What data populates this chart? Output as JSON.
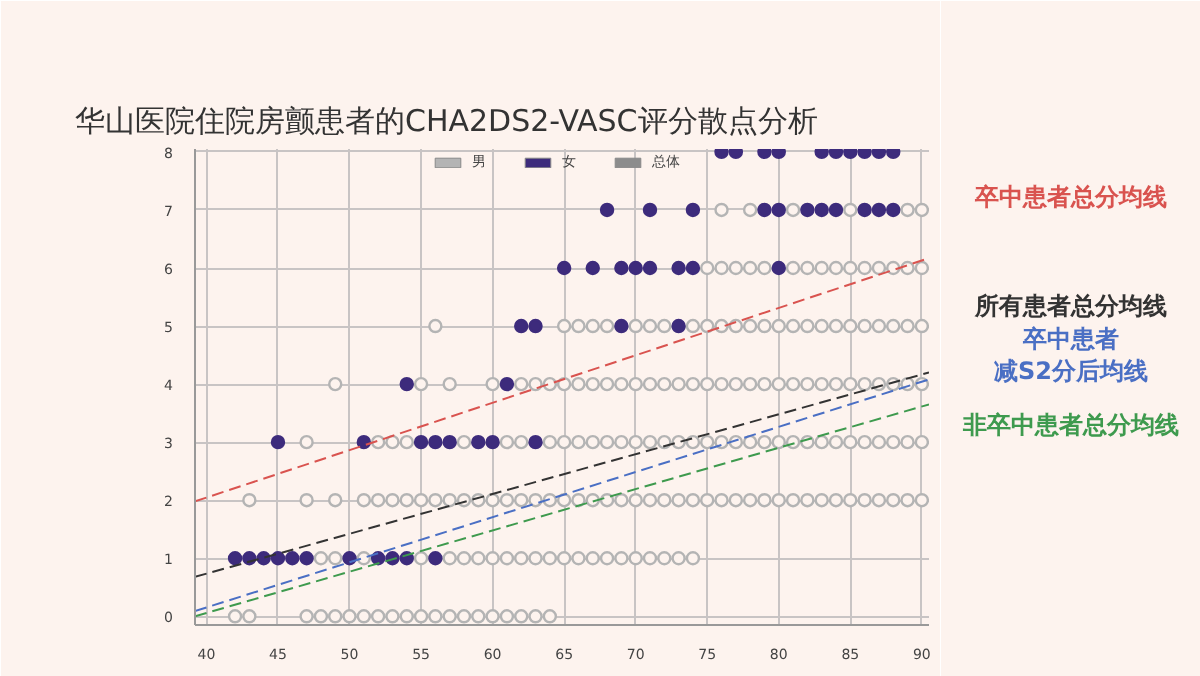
{
  "chart_data": {
    "type": "scatter",
    "title": "华山医院住院房颤患者的CHA2DS2-VASC评分散点分析",
    "xlim": [
      39.2,
      90.5
    ],
    "xticks": [
      40,
      45,
      50,
      55,
      60,
      65,
      70,
      75,
      80,
      85,
      90
    ],
    "ylim": [
      -0.15,
      8.05
    ],
    "yticks": [
      0,
      1,
      2,
      3,
      4,
      5,
      6,
      7,
      8
    ],
    "grid": true,
    "legend": "top",
    "marker": "circle",
    "series": [
      {
        "name": "男",
        "color": "#b4b4b4",
        "x": [
          76,
          78,
          81,
          85,
          89,
          90,
          75,
          76,
          77,
          78,
          79,
          81,
          82,
          83,
          84,
          85,
          86,
          87,
          88,
          89,
          90,
          56,
          65,
          66,
          67,
          68,
          70,
          71,
          72,
          74,
          75,
          76,
          77,
          78,
          79,
          80,
          81,
          82,
          83,
          84,
          85,
          86,
          87,
          88,
          89,
          90,
          49,
          55,
          57,
          60,
          62,
          63,
          64,
          65,
          66,
          67,
          68,
          69,
          70,
          71,
          72,
          73,
          74,
          75,
          76,
          77,
          78,
          79,
          80,
          81,
          82,
          83,
          84,
          85,
          86,
          87,
          88,
          89,
          90,
          47,
          52,
          53,
          54,
          58,
          61,
          62,
          64,
          65,
          66,
          67,
          68,
          69,
          70,
          71,
          72,
          73,
          74,
          75,
          76,
          77,
          78,
          79,
          80,
          81,
          82,
          83,
          84,
          85,
          86,
          87,
          88,
          89,
          90,
          43,
          47,
          49,
          51,
          52,
          53,
          54,
          55,
          56,
          57,
          58,
          59,
          60,
          61,
          62,
          63,
          64,
          65,
          66,
          67,
          68,
          69,
          70,
          71,
          72,
          73,
          74,
          75,
          76,
          77,
          78,
          79,
          80,
          81,
          82,
          83,
          84,
          85,
          86,
          87,
          88,
          89,
          90,
          48,
          49,
          51,
          55,
          57,
          58,
          59,
          60,
          61,
          62,
          63,
          64,
          65,
          66,
          67,
          68,
          69,
          70,
          71,
          72,
          73,
          74,
          42,
          43,
          47,
          48,
          49,
          50,
          51,
          52,
          53,
          54,
          55,
          56,
          57,
          58,
          59,
          60,
          61,
          62,
          63,
          64
        ],
        "values": [
          7,
          7,
          7,
          7,
          7,
          7,
          6,
          6,
          6,
          6,
          6,
          6,
          6,
          6,
          6,
          6,
          6,
          6,
          6,
          6,
          6,
          5,
          5,
          5,
          5,
          5,
          5,
          5,
          5,
          5,
          5,
          5,
          5,
          5,
          5,
          5,
          5,
          5,
          5,
          5,
          5,
          5,
          5,
          5,
          5,
          5,
          4,
          4,
          4,
          4,
          4,
          4,
          4,
          4,
          4,
          4,
          4,
          4,
          4,
          4,
          4,
          4,
          4,
          4,
          4,
          4,
          4,
          4,
          4,
          4,
          4,
          4,
          4,
          4,
          4,
          4,
          4,
          4,
          4,
          3,
          3,
          3,
          3,
          3,
          3,
          3,
          3,
          3,
          3,
          3,
          3,
          3,
          3,
          3,
          3,
          3,
          3,
          3,
          3,
          3,
          3,
          3,
          3,
          3,
          3,
          3,
          3,
          3,
          3,
          3,
          3,
          3,
          3,
          2,
          2,
          2,
          2,
          2,
          2,
          2,
          2,
          2,
          2,
          2,
          2,
          2,
          2,
          2,
          2,
          2,
          2,
          2,
          2,
          2,
          2,
          2,
          2,
          2,
          2,
          2,
          2,
          2,
          2,
          2,
          2,
          2,
          2,
          2,
          2,
          2,
          2,
          2,
          2,
          2,
          2,
          2,
          1,
          1,
          1,
          1,
          1,
          1,
          1,
          1,
          1,
          1,
          1,
          1,
          1,
          1,
          1,
          1,
          1,
          1,
          1,
          1,
          1,
          1,
          0,
          0,
          0,
          0,
          0,
          0,
          0,
          0,
          0,
          0,
          0,
          0,
          0,
          0,
          0,
          0,
          0,
          0,
          0,
          0
        ]
      },
      {
        "name": "女",
        "color": "#3d2b7c",
        "x": [
          76,
          77,
          79,
          80,
          83,
          84,
          85,
          86,
          87,
          88,
          68,
          71,
          74,
          79,
          80,
          82,
          83,
          84,
          86,
          87,
          88,
          65,
          67,
          69,
          70,
          71,
          73,
          74,
          80,
          62,
          63,
          69,
          73,
          54,
          61,
          45,
          51,
          55,
          56,
          57,
          59,
          60,
          63,
          42,
          43,
          44,
          45,
          46,
          47,
          50,
          52,
          53,
          54,
          56
        ],
        "values": [
          8,
          8,
          8,
          8,
          8,
          8,
          8,
          8,
          8,
          8,
          7,
          7,
          7,
          7,
          7,
          7,
          7,
          7,
          7,
          7,
          7,
          6,
          6,
          6,
          6,
          6,
          6,
          6,
          6,
          5,
          5,
          5,
          5,
          4,
          4,
          3,
          3,
          3,
          3,
          3,
          3,
          3,
          3,
          1,
          1,
          1,
          1,
          1,
          1,
          1,
          1,
          1,
          1,
          1
        ]
      },
      {
        "name": "总体",
        "color": "#8c8c8c"
      },
      {
        "name": "卒中患者总分均线",
        "color": "#d9534f",
        "type": "line",
        "marker": "none",
        "line_style": "dashed",
        "x": [
          39.2,
          90.5
        ],
        "values": [
          1.98,
          6.17
        ]
      },
      {
        "name": "所有患者总分均线",
        "color": "#333333",
        "type": "line",
        "marker": "none",
        "line_style": "dashed",
        "x": [
          39.2,
          90.5
        ],
        "values": [
          0.68,
          4.2
        ]
      },
      {
        "name": "卒中患者减S2分后均线",
        "color": "#4a6fc4",
        "type": "line",
        "marker": "none",
        "line_style": "dashed",
        "x": [
          39.2,
          90.5
        ],
        "values": [
          0.09,
          4.08
        ]
      },
      {
        "name": "非卒中患者总分均线",
        "color": "#3e9a4e",
        "type": "line",
        "marker": "none",
        "line_style": "dashed",
        "x": [
          39.2,
          90.5
        ],
        "values": [
          0.0,
          3.65
        ]
      }
    ]
  }
}
